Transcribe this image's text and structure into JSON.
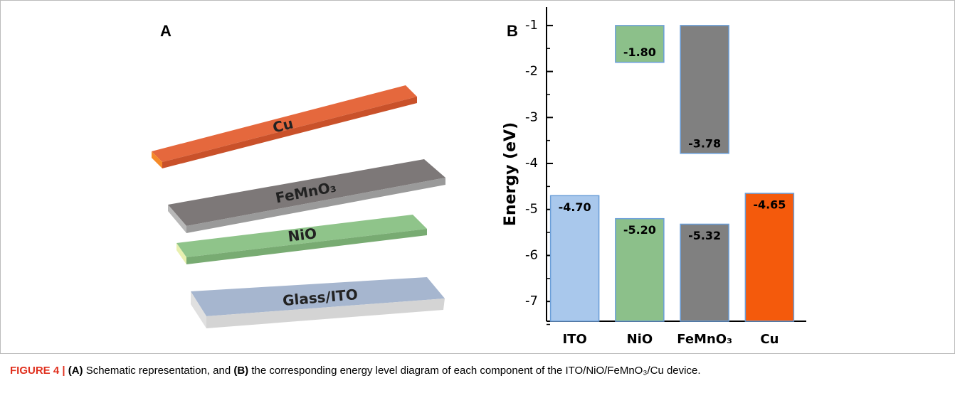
{
  "panel_a": {
    "label": "A",
    "layers": [
      "Cu",
      "FeMnO₃",
      "NiO",
      "Glass/ITO"
    ]
  },
  "chart_data": {
    "type": "energy-level",
    "panel_label": "B",
    "ylabel": "Energy (eV)",
    "categories": [
      "ITO",
      "NiO",
      "FeMnO₃",
      "Cu"
    ],
    "colors": [
      "#a9c8ec",
      "#8cc08a",
      "#808080",
      "#f45a0c"
    ],
    "series": [
      {
        "values": [
          -4.7,
          -5.2,
          -5.32,
          -4.65
        ],
        "value_labels": [
          "-4.70",
          "-5.20",
          "-5.32",
          "-4.65"
        ]
      },
      {
        "values": [
          null,
          -1.8,
          -3.78,
          null
        ],
        "value_labels": [
          null,
          "-1.80",
          "-3.78",
          null
        ]
      }
    ],
    "ylim": [
      -7.43,
      -0.6
    ],
    "yticks": [
      -1,
      -2,
      -3,
      -4,
      -5,
      -6,
      -7
    ]
  },
  "caption": {
    "label": "FIGURE 4 |",
    "a": "(A)",
    "text_a": " Schematic representation, and ",
    "b": "(B)",
    "text_b": " the corresponding energy level diagram of each component of the ITO/NiO/FeMnO₃/Cu device."
  }
}
